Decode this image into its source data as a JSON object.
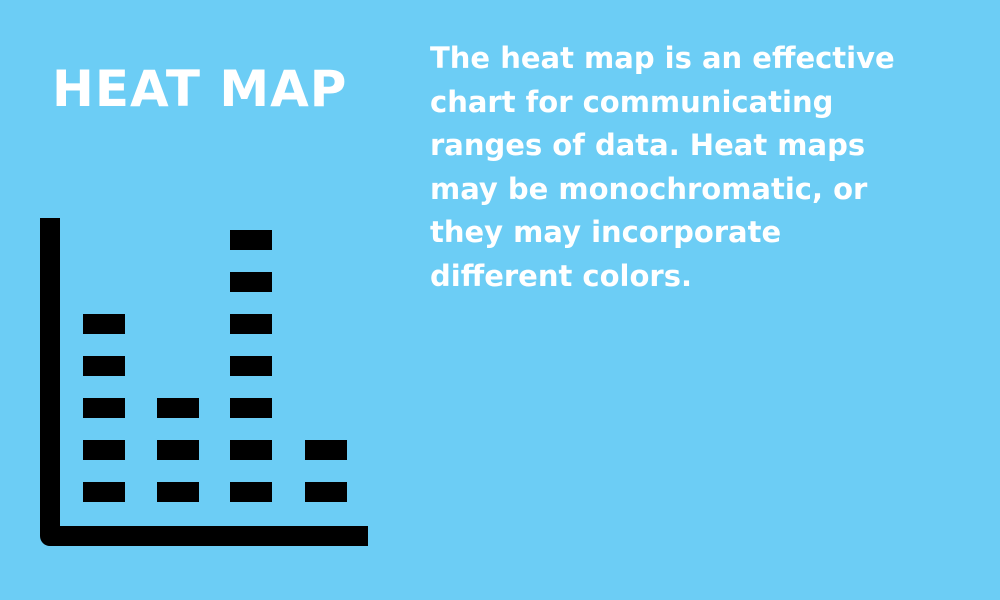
{
  "title": "HEAT MAP",
  "description_lines": [
    "The heat map is an effective",
    "chart for communicating",
    "ranges of data. Heat maps",
    "may be monochromatic, or",
    "they may incorporate",
    "different colors."
  ],
  "colors": {
    "background": "#6ccdf5",
    "text": "#ffffff",
    "icon": "#000000"
  },
  "icon": {
    "name": "heat-map-chart-icon",
    "column_block_counts": [
      5,
      3,
      7,
      2
    ]
  }
}
